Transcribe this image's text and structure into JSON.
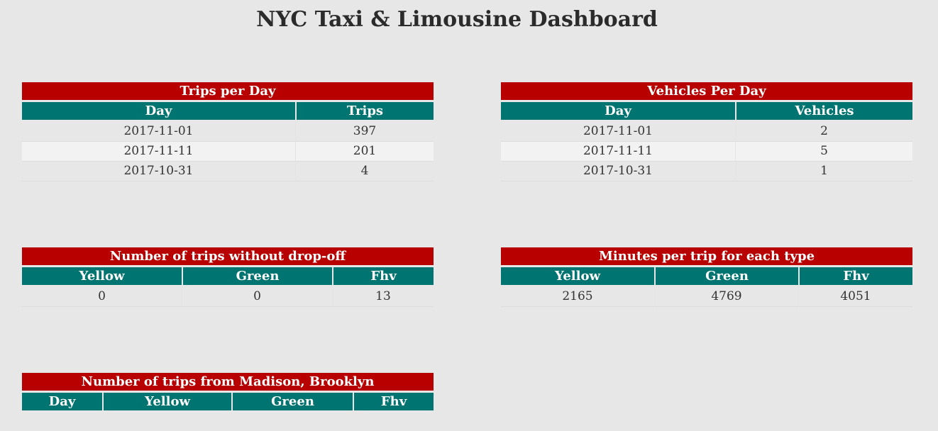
{
  "page": {
    "title": "NYC Taxi & Limousine Dashboard"
  },
  "colors": {
    "background": "#e8e7e8",
    "panel_title_bg": "#b80000",
    "table_header_bg": "#007470",
    "alt_row_bg": "#f2f2f2"
  },
  "trips_per_day": {
    "title": "Trips per Day",
    "columns": [
      "Day",
      "Trips"
    ],
    "rows": [
      [
        "2017-11-01",
        "397"
      ],
      [
        "2017-11-11",
        "201"
      ],
      [
        "2017-10-31",
        "4"
      ]
    ]
  },
  "vehicles_per_day": {
    "title": "Vehicles Per Day",
    "columns": [
      "Day",
      "Vehicles"
    ],
    "rows": [
      [
        "2017-11-01",
        "2"
      ],
      [
        "2017-11-11",
        "5"
      ],
      [
        "2017-10-31",
        "1"
      ]
    ]
  },
  "trips_without_dropoff": {
    "title": "Number of trips without drop-off",
    "columns": [
      "Yellow",
      "Green",
      "Fhv"
    ],
    "rows": [
      [
        "0",
        "0",
        "13"
      ]
    ]
  },
  "minutes_per_trip": {
    "title": "Minutes per trip for each type",
    "columns": [
      "Yellow",
      "Green",
      "Fhv"
    ],
    "rows": [
      [
        "2165",
        "4769",
        "4051"
      ]
    ]
  },
  "trips_from_madison": {
    "title": "Number of trips from Madison, Brooklyn",
    "columns": [
      "Day",
      "Yellow",
      "Green",
      "Fhv"
    ],
    "rows": []
  }
}
